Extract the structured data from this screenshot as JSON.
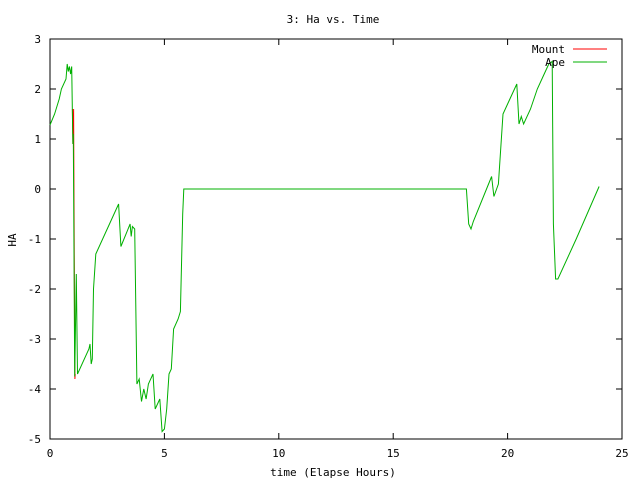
{
  "chart_data": {
    "type": "line",
    "title": "3: Ha vs. Time",
    "xlabel": "time (Elapse Hours)",
    "ylabel": "HA",
    "xlim": [
      0,
      25
    ],
    "ylim": [
      -5,
      3
    ],
    "xticks": [
      0,
      5,
      10,
      15,
      20,
      25
    ],
    "yticks": [
      -5,
      -4,
      -3,
      -2,
      -1,
      0,
      1,
      2,
      3
    ],
    "grid": false,
    "legend_position": "top-right",
    "series": [
      {
        "name": "Mount",
        "color": "#ff0000",
        "points": [
          [
            0.98,
            1.6
          ],
          [
            1.0,
            0.9
          ],
          [
            1.03,
            1.6
          ],
          [
            1.05,
            -0.2
          ],
          [
            1.07,
            -2.3
          ],
          [
            1.09,
            -3.8
          ],
          [
            1.1,
            -3.7
          ]
        ]
      },
      {
        "name": "Ape",
        "color": "#00b000",
        "points": [
          [
            0.0,
            1.28
          ],
          [
            0.2,
            1.5
          ],
          [
            0.4,
            1.8
          ],
          [
            0.5,
            2.0
          ],
          [
            0.7,
            2.2
          ],
          [
            0.75,
            2.5
          ],
          [
            0.8,
            2.35
          ],
          [
            0.85,
            2.45
          ],
          [
            0.9,
            2.3
          ],
          [
            0.95,
            2.45
          ],
          [
            0.98,
            1.5
          ],
          [
            1.0,
            0.9
          ],
          [
            1.02,
            1.1
          ],
          [
            1.05,
            -1.3
          ],
          [
            1.08,
            -3.75
          ],
          [
            1.15,
            -1.7
          ],
          [
            1.2,
            -3.7
          ],
          [
            1.7,
            -3.2
          ],
          [
            1.75,
            -3.1
          ],
          [
            1.8,
            -3.5
          ],
          [
            1.85,
            -3.4
          ],
          [
            1.9,
            -2.0
          ],
          [
            2.0,
            -1.3
          ],
          [
            3.0,
            -0.3
          ],
          [
            3.1,
            -1.15
          ],
          [
            3.5,
            -0.7
          ],
          [
            3.55,
            -0.95
          ],
          [
            3.6,
            -0.75
          ],
          [
            3.7,
            -0.8
          ],
          [
            3.8,
            -3.9
          ],
          [
            3.9,
            -3.8
          ],
          [
            4.0,
            -4.25
          ],
          [
            4.1,
            -4.0
          ],
          [
            4.2,
            -4.2
          ],
          [
            4.3,
            -3.9
          ],
          [
            4.5,
            -3.7
          ],
          [
            4.6,
            -4.4
          ],
          [
            4.8,
            -4.2
          ],
          [
            4.9,
            -4.85
          ],
          [
            5.0,
            -4.8
          ],
          [
            5.1,
            -4.4
          ],
          [
            5.2,
            -3.7
          ],
          [
            5.3,
            -3.6
          ],
          [
            5.4,
            -2.8
          ],
          [
            5.6,
            -2.6
          ],
          [
            5.7,
            -2.45
          ],
          [
            5.8,
            -0.5
          ],
          [
            5.85,
            0.0
          ],
          [
            18.2,
            0.0
          ],
          [
            18.3,
            -0.7
          ],
          [
            18.4,
            -0.8
          ],
          [
            18.5,
            -0.65
          ],
          [
            19.3,
            0.25
          ],
          [
            19.4,
            -0.15
          ],
          [
            19.6,
            0.1
          ],
          [
            19.8,
            1.5
          ],
          [
            20.0,
            1.7
          ],
          [
            20.4,
            2.1
          ],
          [
            20.5,
            1.3
          ],
          [
            20.6,
            1.45
          ],
          [
            20.7,
            1.3
          ],
          [
            21.0,
            1.6
          ],
          [
            21.3,
            2.0
          ],
          [
            21.6,
            2.3
          ],
          [
            21.8,
            2.5
          ],
          [
            21.95,
            2.55
          ],
          [
            22.0,
            -0.7
          ],
          [
            22.1,
            -1.8
          ],
          [
            22.2,
            -1.8
          ],
          [
            23.0,
            -1.0
          ],
          [
            24.0,
            0.05
          ]
        ]
      }
    ]
  }
}
